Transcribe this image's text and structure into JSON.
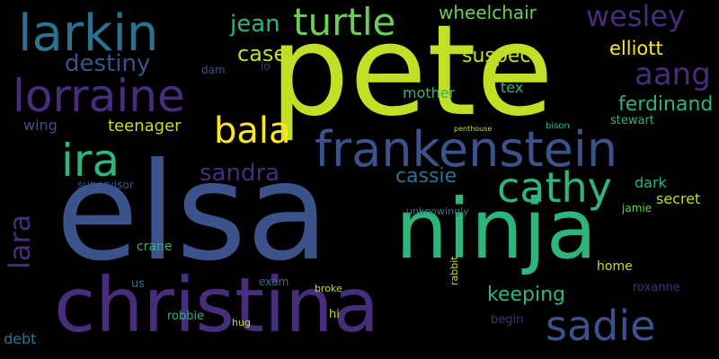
{
  "palette": {
    "background": "#000000",
    "lime": "#c0df25",
    "green": "#2fb47c",
    "teal": "#2c728e",
    "blue": "#3b528b",
    "purple": "#472d7b",
    "dark_purple": "#440154",
    "yellow": "#fde725",
    "light_green": "#6ccd5a",
    "cyan": "#21918c"
  },
  "words": [
    "pete",
    "elsa",
    "ninja",
    "christina",
    "lorraine",
    "larkin",
    "frankenstein",
    "turtle",
    "ira",
    "bala",
    "cathy",
    "sadie",
    "aang",
    "wesley",
    "destiny",
    "sandra",
    "lara",
    "jean",
    "casey",
    "wheelchair",
    "suspect",
    "elliott",
    "ferdinand",
    "keeping",
    "cassie",
    "teenager",
    "mother",
    "tex",
    "wing",
    "dark",
    "secret",
    "stewart",
    "crane",
    "home",
    "roxanne",
    "exam",
    "debt",
    "robbie",
    "hi",
    "begin",
    "jamie",
    "us",
    "dam",
    "lo",
    "supervisor",
    "unknowingly",
    "rabbit",
    "broke",
    "hug",
    "bison",
    "penthouse"
  ]
}
